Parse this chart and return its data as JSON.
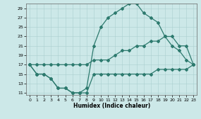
{
  "xlabel": "Humidex (Indice chaleur)",
  "bg_color": "#cce8e8",
  "line_color": "#2d7a6e",
  "xlim": [
    -0.5,
    23.5
  ],
  "ylim": [
    10.5,
    30.0
  ],
  "xticks": [
    0,
    1,
    2,
    3,
    4,
    5,
    6,
    7,
    8,
    9,
    10,
    11,
    12,
    13,
    14,
    15,
    16,
    17,
    18,
    19,
    20,
    21,
    22,
    23
  ],
  "yticks": [
    11,
    13,
    15,
    17,
    19,
    21,
    23,
    25,
    27,
    29
  ],
  "line1_x": [
    0,
    1,
    2,
    3,
    4,
    5,
    6,
    7,
    8,
    9,
    10,
    11,
    12,
    13,
    14,
    15,
    16,
    17,
    18,
    19,
    20,
    21,
    22,
    23
  ],
  "line1_y": [
    17,
    15,
    15,
    14,
    12,
    12,
    11,
    11,
    11,
    15,
    15,
    15,
    15,
    15,
    15,
    15,
    15,
    15,
    16,
    16,
    16,
    16,
    16,
    17
  ],
  "line2_x": [
    0,
    1,
    2,
    3,
    4,
    5,
    6,
    7,
    8,
    9,
    10,
    11,
    12,
    13,
    14,
    15,
    16,
    17,
    18,
    19,
    20,
    21,
    22,
    23
  ],
  "line2_y": [
    17,
    17,
    17,
    17,
    17,
    17,
    17,
    17,
    17,
    18,
    18,
    18,
    19,
    20,
    20,
    21,
    21,
    22,
    22,
    23,
    23,
    21,
    21,
    17
  ],
  "line3_x": [
    0,
    1,
    2,
    3,
    4,
    5,
    6,
    7,
    8,
    9,
    10,
    11,
    12,
    13,
    14,
    15,
    16,
    17,
    18,
    19,
    20,
    21,
    22,
    23
  ],
  "line3_y": [
    17,
    15,
    15,
    14,
    12,
    12,
    11,
    11,
    12,
    21,
    25,
    27,
    28,
    29,
    30,
    30,
    28,
    27,
    26,
    23,
    21,
    20,
    18,
    17
  ],
  "marker": "D",
  "markersize": 2,
  "linewidth": 0.9,
  "tick_fontsize": 4.5,
  "xlabel_fontsize": 5.5,
  "grid_color": "#aacfcf",
  "grid_lw": 0.4
}
